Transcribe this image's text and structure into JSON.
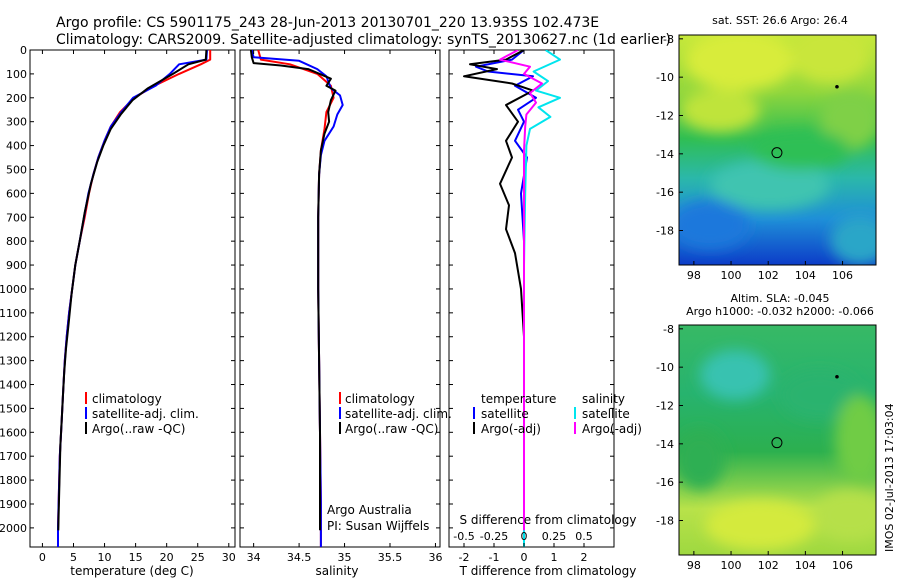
{
  "header": {
    "line1": "Argo profile: CS 5901175_243 28-Jun-2013 20130701_220 13.935S 102.473E",
    "line2": "Climatology: CARS2009. Satellite-adjusted climatology: synTS_20130627.nc (1d earlier)"
  },
  "colors": {
    "clim": "#ff0000",
    "sat": "#0000ff",
    "argo": "#000000",
    "sal_sat": "#00e5ee",
    "sal_argo": "#ff00ff"
  },
  "chart_data": [
    {
      "type": "line",
      "name": "temperature-profile",
      "xlabel": "temperature (deg C)",
      "ylabel": "",
      "xlim": [
        -2,
        31
      ],
      "ylim": [
        2080,
        0
      ],
      "xticks": [
        0,
        5,
        10,
        15,
        20,
        25,
        30
      ],
      "yticks": [
        0,
        100,
        200,
        300,
        400,
        500,
        600,
        700,
        800,
        900,
        1000,
        1100,
        1200,
        1300,
        1400,
        1500,
        1600,
        1700,
        1800,
        1900,
        2000
      ],
      "legend": [
        "climatology",
        "satellite-adj. clim.",
        "Argo(..raw -QC)"
      ],
      "series": [
        {
          "name": "climatology",
          "color": "#ff0000",
          "points": [
            [
              27.0,
              0
            ],
            [
              27.0,
              40
            ],
            [
              25.5,
              60
            ],
            [
              22.0,
              100
            ],
            [
              18.0,
              150
            ],
            [
              14.8,
              200
            ],
            [
              12.5,
              260
            ],
            [
              11.0,
              320
            ],
            [
              10.0,
              380
            ],
            [
              9.0,
              450
            ],
            [
              8.2,
              520
            ],
            [
              7.5,
              600
            ],
            [
              6.8,
              700
            ],
            [
              6.0,
              800
            ],
            [
              5.3,
              900
            ],
            [
              4.8,
              1000
            ],
            [
              4.3,
              1100
            ],
            [
              3.9,
              1200
            ],
            [
              3.6,
              1300
            ],
            [
              3.4,
              1400
            ],
            [
              3.2,
              1500
            ],
            [
              3.0,
              1600
            ],
            [
              2.8,
              1700
            ],
            [
              2.7,
              1800
            ],
            [
              2.6,
              1900
            ],
            [
              2.5,
              2000
            ],
            [
              2.5,
              2080
            ]
          ]
        },
        {
          "name": "satellite-adj. clim.",
          "color": "#0000ff",
          "points": [
            [
              26.5,
              0
            ],
            [
              26.4,
              40
            ],
            [
              22.0,
              60
            ],
            [
              20.5,
              100
            ],
            [
              18.2,
              150
            ],
            [
              14.6,
              200
            ],
            [
              12.7,
              260
            ],
            [
              11.0,
              320
            ],
            [
              10.0,
              380
            ],
            [
              9.0,
              450
            ],
            [
              8.2,
              520
            ],
            [
              7.4,
              600
            ],
            [
              6.7,
              700
            ],
            [
              6.0,
              800
            ],
            [
              5.3,
              900
            ],
            [
              4.8,
              1000
            ],
            [
              4.3,
              1100
            ],
            [
              3.9,
              1200
            ],
            [
              3.6,
              1300
            ],
            [
              3.4,
              1400
            ],
            [
              3.2,
              1500
            ],
            [
              3.0,
              1600
            ],
            [
              2.8,
              1700
            ],
            [
              2.7,
              1800
            ],
            [
              2.6,
              1900
            ],
            [
              2.5,
              2000
            ],
            [
              2.5,
              2080
            ]
          ]
        },
        {
          "name": "Argo(..raw -QC)",
          "color": "#000000",
          "points": [
            [
              26.4,
              0
            ],
            [
              26.3,
              40
            ],
            [
              23.5,
              60
            ],
            [
              21.0,
              100
            ],
            [
              17.0,
              160
            ],
            [
              14.5,
              210
            ],
            [
              12.6,
              270
            ],
            [
              11.0,
              330
            ],
            [
              9.8,
              400
            ],
            [
              8.8,
              470
            ],
            [
              7.8,
              560
            ],
            [
              6.8,
              680
            ],
            [
              6.0,
              800
            ],
            [
              5.3,
              900
            ],
            [
              4.7,
              1020
            ],
            [
              4.2,
              1150
            ],
            [
              3.8,
              1250
            ],
            [
              3.5,
              1350
            ],
            [
              3.3,
              1450
            ],
            [
              3.1,
              1550
            ],
            [
              2.9,
              1650
            ],
            [
              2.8,
              1750
            ],
            [
              2.7,
              1850
            ],
            [
              2.6,
              1950
            ],
            [
              2.55,
              2010
            ]
          ]
        }
      ]
    },
    {
      "type": "line",
      "name": "salinity-profile",
      "xlabel": "salinity",
      "xlim": [
        33.85,
        36.05
      ],
      "ylim": [
        2080,
        0
      ],
      "xticks": [
        34,
        34.5,
        35,
        35.5,
        36
      ],
      "legend": [
        "climatology",
        "satellite-adj. clim.",
        "Argo(..raw -QC)"
      ],
      "annotation": [
        "Argo Australia",
        "PI: Susan Wijffels"
      ],
      "series": [
        {
          "name": "climatology",
          "color": "#ff0000",
          "points": [
            [
              34.05,
              0
            ],
            [
              34.08,
              40
            ],
            [
              34.4,
              60
            ],
            [
              34.7,
              100
            ],
            [
              34.85,
              150
            ],
            [
              34.88,
              200
            ],
            [
              34.8,
              260
            ],
            [
              34.78,
              330
            ],
            [
              34.74,
              420
            ],
            [
              34.72,
              520
            ],
            [
              34.71,
              700
            ],
            [
              34.71,
              1000
            ],
            [
              34.72,
              1300
            ],
            [
              34.73,
              1600
            ],
            [
              34.74,
              1900
            ],
            [
              34.74,
              2080
            ]
          ]
        },
        {
          "name": "satellite-adj. clim.",
          "color": "#0000ff",
          "points": [
            [
              33.98,
              0
            ],
            [
              34.0,
              30
            ],
            [
              34.5,
              45
            ],
            [
              34.7,
              80
            ],
            [
              34.8,
              110
            ],
            [
              34.85,
              160
            ],
            [
              34.95,
              190
            ],
            [
              34.98,
              230
            ],
            [
              34.92,
              270
            ],
            [
              34.88,
              320
            ],
            [
              34.78,
              380
            ],
            [
              34.74,
              440
            ],
            [
              34.72,
              520
            ],
            [
              34.71,
              700
            ],
            [
              34.71,
              1000
            ],
            [
              34.72,
              1300
            ],
            [
              34.73,
              1600
            ],
            [
              34.74,
              1900
            ],
            [
              34.74,
              2080
            ]
          ]
        },
        {
          "name": "Argo(..raw -QC)",
          "color": "#000000",
          "points": [
            [
              33.97,
              0
            ],
            [
              33.98,
              30
            ],
            [
              34.0,
              55
            ],
            [
              34.3,
              65
            ],
            [
              34.6,
              80
            ],
            [
              34.85,
              120
            ],
            [
              34.8,
              150
            ],
            [
              34.9,
              170
            ],
            [
              34.85,
              210
            ],
            [
              34.82,
              260
            ],
            [
              34.83,
              300
            ],
            [
              34.78,
              350
            ],
            [
              34.74,
              420
            ],
            [
              34.72,
              520
            ],
            [
              34.71,
              700
            ],
            [
              34.71,
              1000
            ],
            [
              34.72,
              1300
            ],
            [
              34.73,
              1600
            ],
            [
              34.73,
              1900
            ],
            [
              34.73,
              2010
            ]
          ]
        }
      ]
    },
    {
      "type": "line",
      "name": "difference-from-climatology",
      "xlabel": "T difference from climatology",
      "xlabel_top": "S difference from climatology",
      "xlim": [
        -2.5,
        3.0
      ],
      "ylim": [
        2080,
        0
      ],
      "xticks": [
        -2,
        -1,
        0,
        1,
        2
      ],
      "xticks_top": [
        "-0.5",
        "-0.25",
        "0",
        "0.25",
        "0.5"
      ],
      "legend_temperature": [
        "temperature",
        "satellite",
        "Argo(-adj)"
      ],
      "legend_salinity": [
        "salinity",
        "satellite",
        "Argo(-adj)"
      ],
      "series": [
        {
          "name": "T satellite",
          "color": "#0000ff",
          "points": [
            [
              0,
              0
            ],
            [
              -0.4,
              40
            ],
            [
              -1.6,
              70
            ],
            [
              -1.2,
              90
            ],
            [
              0.3,
              110
            ],
            [
              -0.3,
              150
            ],
            [
              0.4,
              200
            ],
            [
              -0.2,
              250
            ],
            [
              0.0,
              300
            ],
            [
              -0.3,
              380
            ],
            [
              0.1,
              450
            ],
            [
              -0.1,
              600
            ],
            [
              0.0,
              800
            ],
            [
              0.0,
              1200
            ],
            [
              0.0,
              1600
            ],
            [
              0.0,
              2080
            ]
          ]
        },
        {
          "name": "T Argo(-adj)",
          "color": "#000000",
          "points": [
            [
              0,
              0
            ],
            [
              -0.6,
              40
            ],
            [
              -1.8,
              60
            ],
            [
              -0.9,
              80
            ],
            [
              -2.0,
              110
            ],
            [
              -0.4,
              140
            ],
            [
              0.3,
              170
            ],
            [
              -0.6,
              230
            ],
            [
              -0.2,
              300
            ],
            [
              -0.6,
              380
            ],
            [
              -0.4,
              450
            ],
            [
              -0.8,
              560
            ],
            [
              -0.5,
              650
            ],
            [
              -0.6,
              750
            ],
            [
              -0.3,
              850
            ],
            [
              -0.1,
              1000
            ],
            [
              0.0,
              1200
            ],
            [
              0.0,
              1600
            ],
            [
              0.0,
              2010
            ]
          ]
        },
        {
          "name": "S satellite",
          "color": "#00e5ee",
          "points": [
            [
              0.18,
              0
            ],
            [
              0.3,
              40
            ],
            [
              0.08,
              90
            ],
            [
              0.2,
              130
            ],
            [
              0.1,
              170
            ],
            [
              0.3,
              200
            ],
            [
              0.12,
              240
            ],
            [
              0.22,
              280
            ],
            [
              0.05,
              330
            ],
            [
              0.02,
              400
            ],
            [
              0.01,
              600
            ],
            [
              0.0,
              900
            ],
            [
              0.0,
              1300
            ],
            [
              0.0,
              1700
            ],
            [
              0.0,
              2080
            ]
          ]
        },
        {
          "name": "S Argo(-adj)",
          "color": "#ff00ff",
          "points": [
            [
              -0.05,
              0
            ],
            [
              -0.2,
              40
            ],
            [
              0.05,
              70
            ],
            [
              0.0,
              100
            ],
            [
              0.15,
              140
            ],
            [
              0.05,
              180
            ],
            [
              0.1,
              220
            ],
            [
              0.02,
              270
            ],
            [
              0.01,
              320
            ],
            [
              0.0,
              420
            ],
            [
              0.0,
              800
            ],
            [
              0.0,
              1400
            ],
            [
              0.0,
              2010
            ]
          ]
        }
      ]
    }
  ],
  "maps": [
    {
      "name": "sst-map",
      "title": "sat. SST: 26.6  Argo: 26.4",
      "xticks": [
        "98",
        "100",
        "102",
        "104",
        "106"
      ],
      "yticks": [
        "-8",
        "-10",
        "-12",
        "-14",
        "-16",
        "-18"
      ],
      "xlim": [
        97.2,
        107.8
      ],
      "ylim": [
        -19.8,
        -7.8
      ],
      "marker": {
        "lon": 102.47,
        "lat": -13.94
      },
      "island": {
        "lon": 105.7,
        "lat": -10.5
      }
    },
    {
      "name": "sla-map",
      "title": "Altim. SLA: -0.045",
      "subtitle": "Argo h1000: -0.032  h2000: -0.066",
      "xticks": [
        "98",
        "100",
        "102",
        "104",
        "106"
      ],
      "yticks": [
        "-8",
        "-10",
        "-12",
        "-14",
        "-16",
        "-18"
      ],
      "xlim": [
        97.2,
        107.8
      ],
      "ylim": [
        -19.8,
        -7.8
      ],
      "marker": {
        "lon": 102.47,
        "lat": -13.94
      },
      "island": {
        "lon": 105.7,
        "lat": -10.5
      }
    }
  ],
  "footer_stamp": "IMOS 02-Jul-2013 17:03:04"
}
